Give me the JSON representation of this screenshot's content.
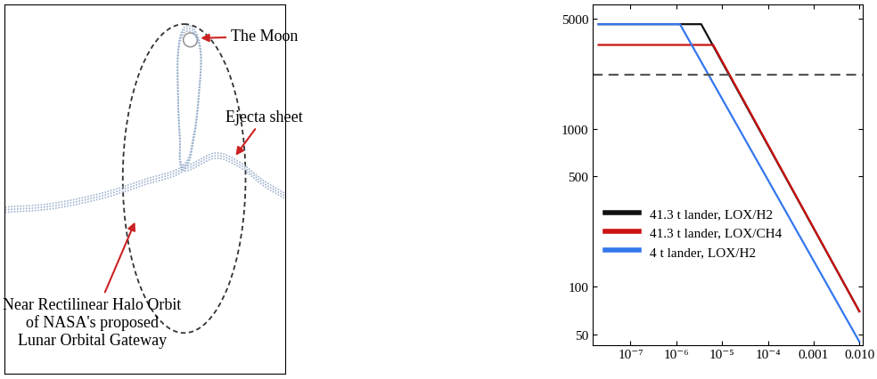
{
  "diagram": {
    "labels": {
      "moon": "The Moon",
      "ejecta": "Ejecta sheet",
      "orbit": "Near Rectilinear Halo Orbit\nof NASA's proposed\nLunar Orbital Gateway"
    }
  },
  "chart_data": {
    "type": "line",
    "log": true,
    "xlim": [
      1.5e-08,
      0.012
    ],
    "ylim": [
      43,
      6100
    ],
    "xticks": [
      {
        "value": 1e-07,
        "label": "10⁻⁷"
      },
      {
        "value": 1e-06,
        "label": "10⁻⁶"
      },
      {
        "value": 1e-05,
        "label": "10⁻⁵"
      },
      {
        "value": 0.0001,
        "label": "10⁻⁴"
      },
      0.001,
      {
        "value": 0.01,
        "label": "0.010"
      }
    ],
    "yticks": [
      50,
      100,
      500,
      1000,
      5000
    ],
    "legend": "lower left",
    "series": [
      {
        "name": "41.3 t lander, LOX/H2",
        "color": "#111111",
        "line_style": "solid",
        "x": [
          2e-08,
          3.5e-06,
          0.01
        ],
        "values": [
          4600,
          4600,
          70
        ]
      },
      {
        "name": "41.3 t lander, LOX/CH4",
        "color": "#cc1111",
        "line_style": "solid",
        "x": [
          2e-08,
          6.4e-06,
          0.01
        ],
        "values": [
          3400,
          3400,
          70
        ]
      },
      {
        "name": "4 t lander, LOX/H2",
        "color": "#3377ee",
        "line_style": "solid",
        "x": [
          2e-08,
          1.2e-06,
          0.01
        ],
        "values": [
          4600,
          4600,
          45
        ]
      },
      {
        "color": "#555555",
        "line_style": "dashed",
        "x": [
          1.5e-08,
          0.012
        ],
        "values": [
          2200,
          2200
        ]
      }
    ]
  }
}
